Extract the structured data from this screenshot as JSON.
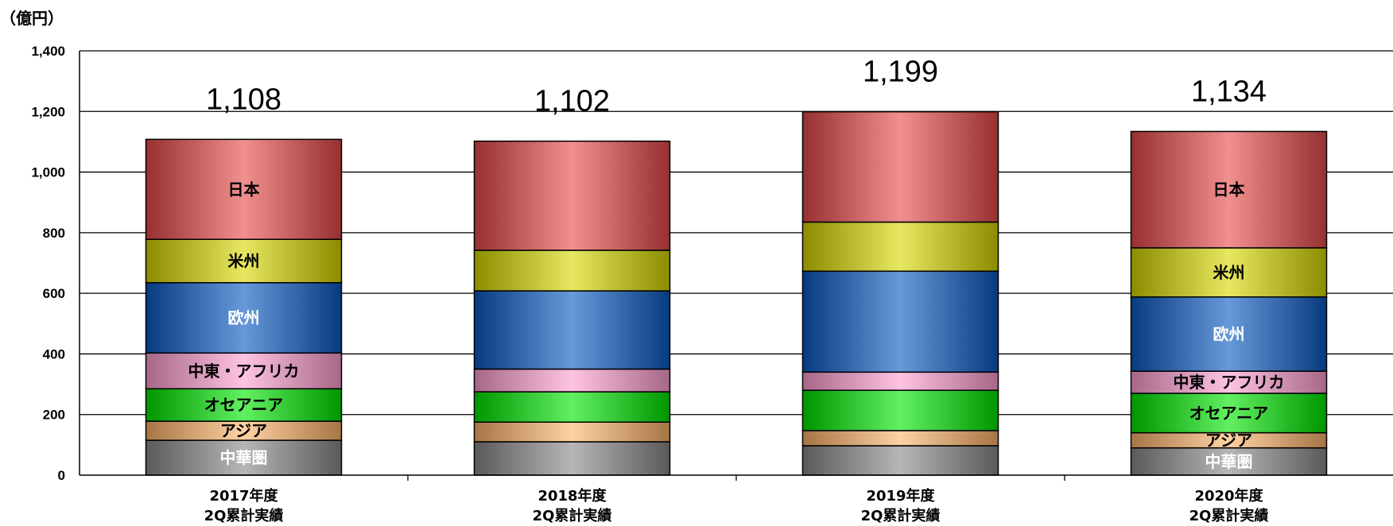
{
  "chart_data": {
    "type": "bar",
    "stacked": true,
    "unit_label": "（億円）",
    "ylim": [
      0,
      1400
    ],
    "yticks": [
      "0",
      "200",
      "400",
      "600",
      "800",
      "1,000",
      "1,200",
      "1,400"
    ],
    "grid": true,
    "categories": [
      [
        "2017年度",
        "2Q累計実績"
      ],
      [
        "2018年度",
        "2Q累計実績"
      ],
      [
        "2019年度",
        "2Q累計実績"
      ],
      [
        "2020年度",
        "2Q累計実績"
      ]
    ],
    "totals": [
      1108,
      1102,
      1199,
      1134
    ],
    "total_labels": [
      "1,108",
      "1,102",
      "1,199",
      "1,134"
    ],
    "series": [
      {
        "name": "中華圏",
        "values": [
          115,
          110,
          97,
          90
        ],
        "color": "#8a8a8a",
        "label_color": "#ffffff",
        "label_visible": [
          true,
          false,
          false,
          true
        ]
      },
      {
        "name": "アジア",
        "values": [
          63,
          65,
          50,
          50
        ],
        "color": "#ffb46b",
        "label_color": "#000000",
        "label_visible": [
          true,
          false,
          false,
          true
        ]
      },
      {
        "name": "オセアニア",
        "values": [
          107,
          100,
          133,
          130
        ],
        "color": "#00e600",
        "label_color": "#000000",
        "label_visible": [
          true,
          false,
          false,
          true
        ]
      },
      {
        "name": "中東・アフリカ",
        "values": [
          118,
          75,
          60,
          73
        ],
        "color": "#ff9fd0",
        "label_color": "#000000",
        "label_visible": [
          true,
          false,
          false,
          true
        ]
      },
      {
        "name": "欧州",
        "values": [
          232,
          258,
          333,
          245
        ],
        "color": "#0a5bc4",
        "label_color": "#ffffff",
        "label_visible": [
          true,
          false,
          false,
          true
        ]
      },
      {
        "name": "米州",
        "values": [
          143,
          134,
          162,
          162
        ],
        "color": "#d8d800",
        "label_color": "#000000",
        "label_visible": [
          true,
          false,
          false,
          true
        ]
      },
      {
        "name": "日本",
        "values": [
          330,
          360,
          364,
          384
        ],
        "color": "#e84a4a",
        "label_color": "#000000",
        "label_visible": [
          true,
          false,
          false,
          true
        ]
      }
    ]
  }
}
